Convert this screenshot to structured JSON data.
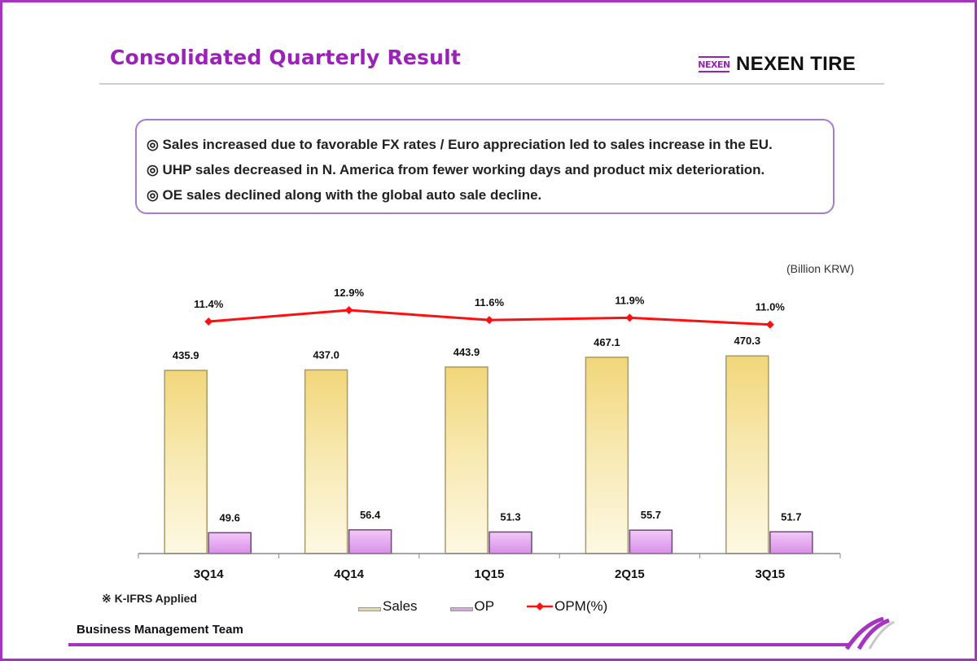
{
  "header": {
    "title": "Consolidated Quarterly Result",
    "logo_mark": "NEXEN",
    "logo_text": "NEXEN TIRE"
  },
  "summary": {
    "bullets": [
      "◎ Sales increased due to favorable FX rates / Euro appreciation led to sales increase in the EU.",
      "◎ UHP sales decreased in N. America from fewer working days and product mix deterioration.",
      "◎ OE sales declined along with the global auto sale decline."
    ]
  },
  "chart_data": {
    "type": "bar",
    "title": "Consolidated Quarterly Result",
    "unit_label": "(Billion KRW)",
    "categories": [
      "3Q14",
      "4Q14",
      "1Q15",
      "2Q15",
      "3Q15"
    ],
    "series": [
      {
        "name": "Sales",
        "type": "bar",
        "color": "#f2dc8a",
        "values": [
          435.9,
          437.0,
          443.9,
          467.1,
          470.3
        ],
        "labels": [
          "435.9",
          "437.0",
          "443.9",
          "467.1",
          "470.3"
        ]
      },
      {
        "name": "OP",
        "type": "bar",
        "color": "#e3a8ef",
        "values": [
          49.6,
          56.4,
          51.3,
          55.7,
          51.7
        ],
        "labels": [
          "49.6",
          "56.4",
          "51.3",
          "55.7",
          "51.7"
        ]
      },
      {
        "name": "OPM(%)",
        "type": "line",
        "color": "#ff1010",
        "values": [
          11.4,
          12.9,
          11.6,
          11.9,
          11.0
        ],
        "labels": [
          "11.4%",
          "12.9%",
          "11.6%",
          "11.9%",
          "11.0%"
        ]
      }
    ],
    "xlabel": "",
    "ylabel": "",
    "grid": false,
    "legend_position": "bottom"
  },
  "legend": {
    "sales": "Sales",
    "op": "OP",
    "opm": "OPM(%)"
  },
  "footer": {
    "note": "※ K-IFRS Applied",
    "team": "Business Management Team"
  },
  "colors": {
    "accent": "#9b22b8",
    "frame": "#a634c0",
    "sales_bar": "#f2dc8a",
    "op_bar": "#e3a8ef",
    "opm_line": "#ff1010"
  }
}
